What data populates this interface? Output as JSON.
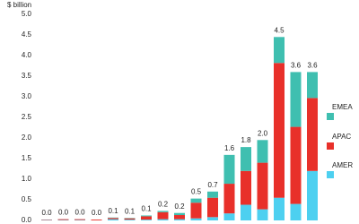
{
  "chart_data": {
    "type": "stacked-bar",
    "y_label": "$ billion",
    "categories": [
      null,
      null,
      null,
      null,
      null,
      null,
      null,
      null,
      null,
      null,
      null,
      null,
      null,
      null,
      null,
      null,
      null
    ],
    "total_labels": [
      "0.0",
      "0.0",
      "0.0",
      "0.0",
      "0.1",
      "0.1",
      "0.1",
      "0.2",
      "0.2",
      "0.5",
      "0.7",
      "1.6",
      "1.8",
      "2.0",
      "4.5",
      "3.6",
      "3.6"
    ],
    "series": [
      {
        "name": "AMER",
        "color": "#4dd0f0",
        "values": [
          0.01,
          0.01,
          0.01,
          0,
          0.03,
          0.02,
          0.02,
          0.03,
          0.03,
          0.05,
          0.08,
          0.17,
          0.38,
          0.27,
          0.55,
          0.4,
          1.2
        ]
      },
      {
        "name": "APAC",
        "color": "#e8302a",
        "values": [
          0.01,
          0.02,
          0.02,
          0.02,
          0.03,
          0.03,
          0.08,
          0.17,
          0.1,
          0.38,
          0.47,
          0.72,
          0.82,
          1.13,
          3.27,
          1.87,
          1.77
        ]
      },
      {
        "name": "EMEA",
        "color": "#3fbfb0",
        "values": [
          0,
          0,
          0,
          0,
          0.01,
          0.01,
          0.02,
          0.03,
          0.05,
          0.1,
          0.15,
          0.7,
          0.58,
          0.55,
          0.63,
          1.33,
          0.63
        ]
      }
    ],
    "ylim": [
      0,
      5
    ],
    "yticks": [
      {
        "value": 0,
        "label": "0.0"
      },
      0.5,
      {
        "value": 1,
        "label": "1.0"
      },
      1.5,
      {
        "value": 2,
        "label": "2.0"
      },
      2.5,
      {
        "value": 3,
        "label": "3.0"
      },
      3.5,
      {
        "value": 4,
        "label": "4.0"
      },
      4.5,
      {
        "value": 5,
        "label": "5.0"
      }
    ]
  }
}
